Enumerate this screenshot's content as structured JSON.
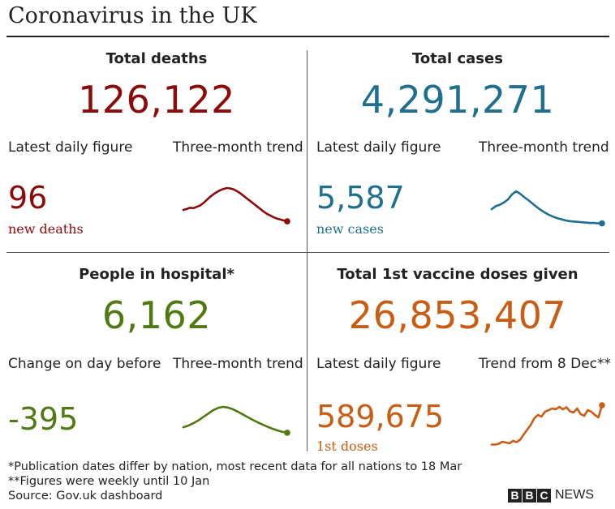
{
  "title": "Coronavirus in the UK",
  "colors": {
    "deaths": "#8b0a0a",
    "cases": "#1f6f91",
    "hospital": "#4f7a10",
    "vaccine": "#c95d13"
  },
  "panels": {
    "deaths": {
      "heading": "Total deaths",
      "total": "126,122",
      "left_label": "Latest daily figure",
      "right_label": "Three-month trend",
      "figure": "96",
      "figure_note": "new deaths"
    },
    "cases": {
      "heading": "Total cases",
      "total": "4,291,271",
      "left_label": "Latest daily figure",
      "right_label": "Three-month trend",
      "figure": "5,587",
      "figure_note": "new cases"
    },
    "hospital": {
      "heading": "People in hospital*",
      "total": "6,162",
      "left_label": "Change on day before",
      "right_label": "Three-month trend",
      "figure": "-395",
      "figure_note": ""
    },
    "vaccine": {
      "heading": "Total 1st vaccine doses given",
      "total": "26,853,407",
      "left_label": "Latest daily figure",
      "right_label": "Trend from 8 Dec**",
      "figure": "589,675",
      "figure_note": "1st doses"
    }
  },
  "footnotes": {
    "line1": "*Publication dates differ by nation, most recent data for all nations to 18 Mar",
    "line2": "**Figures were weekly until 10 Jan",
    "source": "Source: Gov.uk dashboard"
  },
  "logo": {
    "letters": [
      "B",
      "B",
      "C"
    ],
    "word": "NEWS"
  },
  "chart_data": [
    {
      "type": "line",
      "series": [
        {
          "values": [
            0.5,
            0.52,
            0.55,
            0.54,
            0.57,
            0.6,
            0.66,
            0.73,
            0.8,
            0.86,
            0.91,
            0.95,
            0.98,
            1.0,
            0.99,
            0.97,
            0.93,
            0.88,
            0.82,
            0.76,
            0.7,
            0.64,
            0.58,
            0.52,
            0.46,
            0.41,
            0.37,
            0.33,
            0.3,
            0.28,
            0.26,
            0.24
          ]
        }
      ],
      "end_marker": true
    },
    {
      "type": "line",
      "series": [
        {
          "values": [
            0.52,
            0.6,
            0.64,
            0.7,
            0.78,
            0.92,
            1.0,
            0.93,
            0.84,
            0.76,
            0.67,
            0.58,
            0.5,
            0.43,
            0.37,
            0.32,
            0.28,
            0.25,
            0.22,
            0.2,
            0.19,
            0.18,
            0.17,
            0.16,
            0.15,
            0.15,
            0.14,
            0.14
          ]
        }
      ],
      "end_marker": true
    },
    {
      "type": "line",
      "series": [
        {
          "values": [
            0.4,
            0.45,
            0.52,
            0.6,
            0.7,
            0.8,
            0.9,
            0.97,
            1.0,
            0.98,
            0.93,
            0.86,
            0.78,
            0.7,
            0.62,
            0.55,
            0.48,
            0.42,
            0.36,
            0.31,
            0.27,
            0.24
          ]
        }
      ],
      "end_marker": true
    },
    {
      "type": "line",
      "series": [
        {
          "values": [
            0.03,
            0.03,
            0.05,
            0.1,
            0.08,
            0.06,
            0.12,
            0.09,
            0.15,
            0.28,
            0.4,
            0.52,
            0.68,
            0.76,
            0.72,
            0.84,
            0.88,
            0.92,
            0.9,
            0.96,
            0.9,
            0.95,
            0.85,
            0.82,
            0.92,
            0.78,
            0.74,
            0.88,
            0.84,
            0.76,
            0.7,
            1.0
          ]
        }
      ],
      "end_marker": true
    }
  ]
}
